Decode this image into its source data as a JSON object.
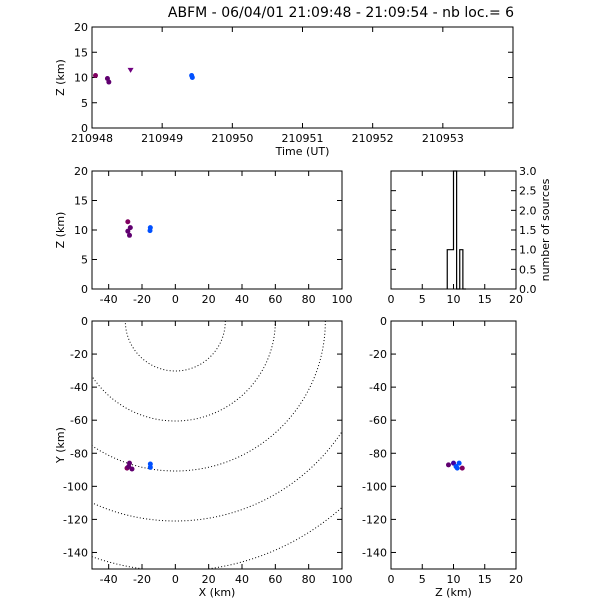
{
  "title": "ABFM - 06/04/01 21:09:48 - 21:09:54 - nb loc.=       6",
  "colors": {
    "early": "#800060",
    "mid": "#4000a0",
    "late": "#0040ff"
  },
  "chart_data": [
    {
      "id": "time_height",
      "type": "scatter",
      "xlabel": "Time (UT)",
      "ylabel": "Z (km)",
      "xlim": [
        210948,
        210954
      ],
      "ylim": [
        0,
        20
      ],
      "xticks": [
        210948,
        210949,
        210950,
        210951,
        210952,
        210953
      ],
      "yticks": [
        0,
        5,
        10,
        15,
        20
      ],
      "points": [
        {
          "x": 210948.05,
          "y": 10.4,
          "color": "#800060"
        },
        {
          "x": 210948.22,
          "y": 9.8,
          "color": "#600070"
        },
        {
          "x": 210948.24,
          "y": 9.1,
          "color": "#600070"
        },
        {
          "x": 210948.55,
          "y": 11.4,
          "color": "#700080",
          "marker": "triangle"
        },
        {
          "x": 210949.42,
          "y": 10.4,
          "color": "#0050ff"
        },
        {
          "x": 210949.43,
          "y": 10.0,
          "color": "#0050ff"
        }
      ]
    },
    {
      "id": "x_height",
      "type": "scatter",
      "ylabel": "Z (km)",
      "xlim": [
        -50,
        100
      ],
      "ylim": [
        0,
        20
      ],
      "xticks": [
        -40,
        -20,
        0,
        20,
        40,
        60,
        80,
        100
      ],
      "yticks": [
        0,
        5,
        10,
        15,
        20
      ],
      "points": [
        {
          "x": -28.5,
          "y": 11.4,
          "color": "#800060"
        },
        {
          "x": -27.0,
          "y": 10.4,
          "color": "#600070"
        },
        {
          "x": -28.5,
          "y": 9.8,
          "color": "#600070"
        },
        {
          "x": -27.5,
          "y": 9.1,
          "color": "#600070"
        },
        {
          "x": -15.0,
          "y": 10.4,
          "color": "#0050ff"
        },
        {
          "x": -15.2,
          "y": 9.9,
          "color": "#0050ff"
        }
      ]
    },
    {
      "id": "histogram",
      "type": "bar",
      "ylabel": "number of sources",
      "xlim": [
        0,
        20
      ],
      "ylim": [
        0,
        3
      ],
      "xticks": [
        0,
        5,
        10,
        15,
        20
      ],
      "yticks": [
        0.0,
        0.5,
        1.0,
        1.5,
        2.0,
        2.5,
        3.0
      ],
      "bin_edges": [
        9,
        9.5,
        10,
        10.5,
        11,
        11.5,
        12
      ],
      "counts": [
        1,
        1,
        3,
        0,
        1,
        0
      ]
    },
    {
      "id": "plan_view",
      "type": "scatter",
      "xlabel": "X (km)",
      "ylabel": "Y (km)",
      "xlim": [
        -50,
        100
      ],
      "ylim": [
        -150,
        0
      ],
      "xticks": [
        -40,
        -20,
        0,
        20,
        40,
        60,
        80,
        100
      ],
      "yticks": [
        0,
        -20,
        -40,
        -60,
        -80,
        -100,
        -120,
        -140
      ],
      "range_rings_center": [
        0,
        0
      ],
      "range_rings_km": [
        30,
        60,
        90,
        120,
        150
      ],
      "points": [
        {
          "x": -29.0,
          "y": -89.0,
          "color": "#800060"
        },
        {
          "x": -27.5,
          "y": -86.0,
          "color": "#600070"
        },
        {
          "x": -28.0,
          "y": -88.0,
          "color": "#600070"
        },
        {
          "x": -26.0,
          "y": -89.5,
          "color": "#600070"
        },
        {
          "x": -15.0,
          "y": -86.5,
          "color": "#0050ff"
        },
        {
          "x": -15.0,
          "y": -88.5,
          "color": "#0050ff"
        }
      ]
    },
    {
      "id": "z_y",
      "type": "scatter",
      "xlabel": "Z (km)",
      "xlim": [
        0,
        20
      ],
      "ylim": [
        -150,
        0
      ],
      "xticks": [
        0,
        5,
        10,
        15,
        20
      ],
      "yticks": [
        0,
        -20,
        -40,
        -60,
        -80,
        -100,
        -120,
        -140
      ],
      "points": [
        {
          "x": 9.2,
          "y": -87.0,
          "color": "#600070"
        },
        {
          "x": 10.0,
          "y": -86.0,
          "color": "#4000a0"
        },
        {
          "x": 10.4,
          "y": -88.0,
          "color": "#0050ff"
        },
        {
          "x": 10.9,
          "y": -86.0,
          "color": "#0050ff"
        },
        {
          "x": 10.6,
          "y": -89.0,
          "color": "#0050ff"
        },
        {
          "x": 11.4,
          "y": -89.0,
          "color": "#800060"
        }
      ]
    }
  ]
}
